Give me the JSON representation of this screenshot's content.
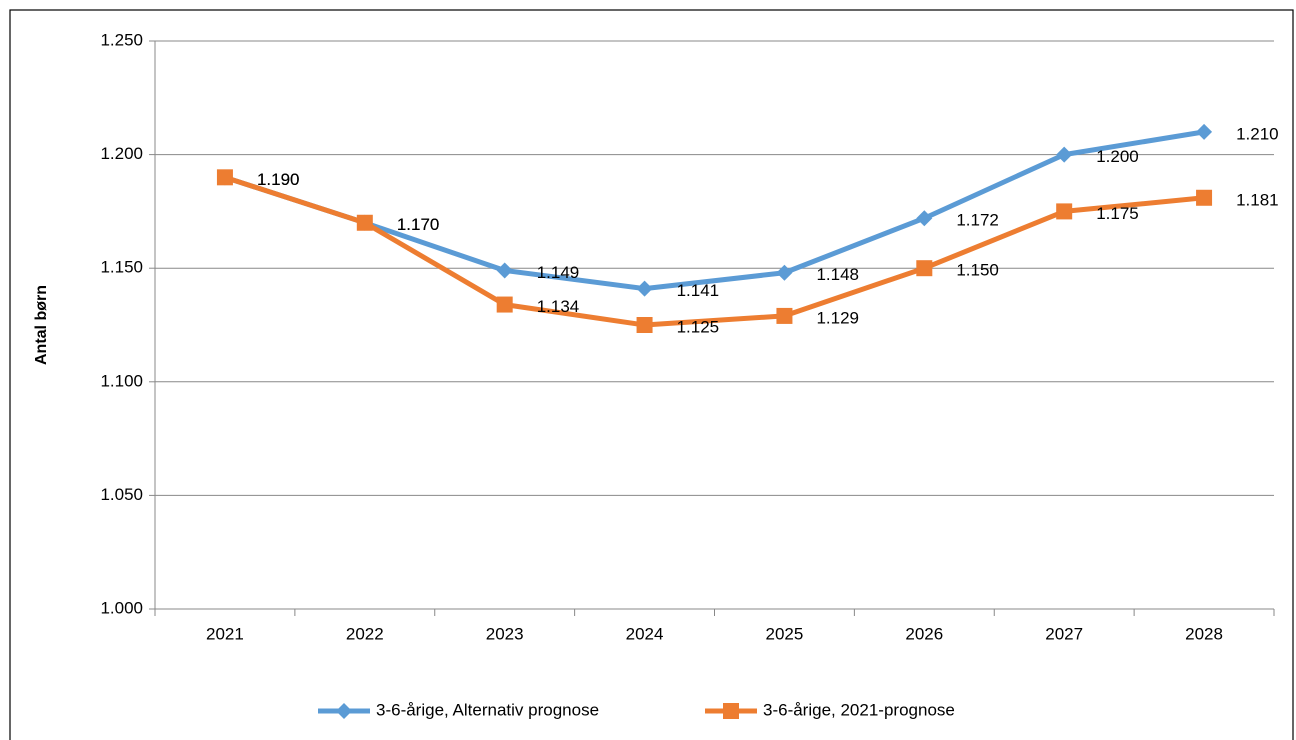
{
  "chart_data": {
    "type": "line",
    "y_label": "Antal børn",
    "categories": [
      "2021",
      "2022",
      "2023",
      "2024",
      "2025",
      "2026",
      "2027",
      "2028"
    ],
    "series": [
      {
        "name": "3-6-årige, Alternativ prognose",
        "color": "#5b9bd5",
        "marker": "diamond",
        "values": [
          1190,
          1170,
          1149,
          1141,
          1148,
          1172,
          1200,
          1210
        ],
        "value_labels": [
          "1.190",
          "1.170",
          "1.149",
          "1.141",
          "1.148",
          "1.172",
          "1.200",
          "1.210"
        ]
      },
      {
        "name": "3-6-årige, 2021-prognose",
        "color": "#ed7d31",
        "marker": "square",
        "values": [
          1190,
          1170,
          1134,
          1125,
          1129,
          1150,
          1175,
          1181
        ],
        "value_labels": [
          "1.190",
          "1.170",
          "1.134",
          "1.125",
          "1.129",
          "1.150",
          "1.175",
          "1.181"
        ]
      }
    ],
    "ylim": [
      1000,
      1250
    ],
    "yticks": [
      {
        "value": 1000,
        "label": "1.000"
      },
      {
        "value": 1050,
        "label": "1.050"
      },
      {
        "value": 1100,
        "label": "1.100"
      },
      {
        "value": 1150,
        "label": "1.150"
      },
      {
        "value": 1200,
        "label": "1.200"
      },
      {
        "value": 1250,
        "label": "1.250"
      }
    ],
    "grid": true,
    "legend": "bottom"
  }
}
